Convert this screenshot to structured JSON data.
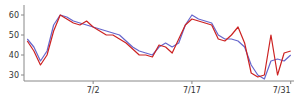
{
  "chart_data": {
    "type": "line",
    "categories": [
      null,
      null,
      null,
      null,
      null,
      null,
      null,
      null,
      null,
      null,
      "7/2",
      null,
      null,
      null,
      null,
      null,
      null,
      null,
      null,
      null,
      null,
      null,
      null,
      null,
      null,
      "7/17",
      null,
      null,
      null,
      null,
      null,
      null,
      null,
      null,
      null,
      null,
      null,
      null,
      null,
      null,
      "7/31"
    ],
    "series": [
      {
        "color": "#6666cc",
        "values": [
          48,
          44,
          37,
          42,
          55,
          60,
          59,
          57,
          56,
          55,
          54,
          53,
          52,
          51,
          50,
          47,
          44,
          42,
          41,
          40,
          44,
          46,
          44,
          46,
          55,
          60,
          58,
          57,
          56,
          50,
          48,
          48,
          47,
          44,
          35,
          30,
          28,
          37,
          38,
          37,
          40
        ]
      },
      {
        "color": "#cc2222",
        "values": [
          47,
          42,
          35,
          40,
          52,
          60,
          58,
          56,
          55,
          57,
          54,
          52,
          50,
          50,
          48,
          46,
          43,
          40,
          40,
          39,
          45,
          44,
          41,
          48,
          55,
          58,
          57,
          56,
          55,
          48,
          47,
          50,
          54,
          46,
          31,
          29,
          30,
          50,
          30,
          41,
          42
        ]
      }
    ],
    "ylim": [
      27,
      65
    ],
    "yticks": [
      30,
      40,
      50,
      60
    ],
    "grid": false
  }
}
